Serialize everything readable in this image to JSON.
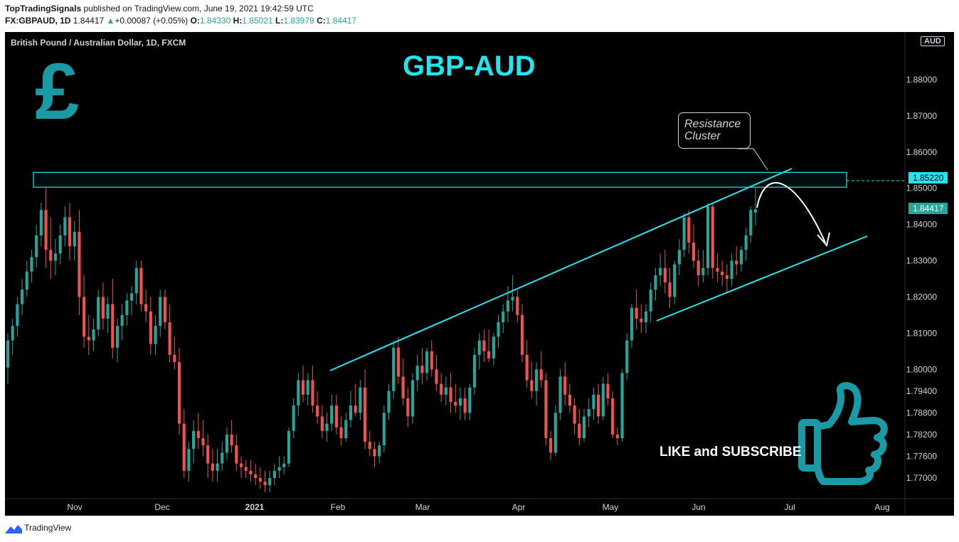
{
  "header": {
    "author": "TopTradingSignals",
    "published_text": "published on TradingView.com, June 19, 2021 19:42:59 UTC",
    "ticker": "FX:GBPAUD, 1D",
    "last": "1.84417",
    "change_icon": "triangle-up-icon",
    "change": "+0.00087 (+0.05%)",
    "o_label": "O:",
    "o_value": "1.84330",
    "h_label": "H:",
    "h_value": "1.85021",
    "l_label": "L:",
    "l_value": "1.83979",
    "c_label": "C:",
    "c_value": "1.84417"
  },
  "chart": {
    "symbol_desc": "British Pound / Australian Dollar, 1D, FXCM",
    "title": "GBP-AUD",
    "currency_symbol": "£",
    "currency_badge": "AUD",
    "callout_line1": "Resistance",
    "callout_line2": "Cluster",
    "like_text": "LIKE and SUBSCRIBE",
    "resistance_price": "1.85220",
    "last_price": "1.84417"
  },
  "colors": {
    "up": "#26a69a",
    "down": "#ef5350",
    "accent": "#22e5f0",
    "background": "#000000",
    "thumb": "#1a9aa5"
  },
  "footer": {
    "brand": "TradingView",
    "brand_icon": "tradingview-logo-icon"
  },
  "chart_data": {
    "type": "candlestick",
    "title": "GBP-AUD",
    "y_ticks": [
      "1.88000",
      "1.87000",
      "1.86000",
      "1.85000",
      "1.84000",
      "1.83000",
      "1.82000",
      "1.81000",
      "1.80000",
      "1.79400",
      "1.78800",
      "1.78200",
      "1.77600",
      "1.77000"
    ],
    "x_ticks": [
      "Nov",
      "Dec",
      "2021",
      "Feb",
      "Mar",
      "Apr",
      "May",
      "Jun",
      "Jul",
      "Aug"
    ],
    "resistance_zone": [
      1.8505,
      1.854
    ],
    "annotations": [
      "Resistance Cluster",
      "Rising channel",
      "Projected drop arrow"
    ],
    "candles": [
      [
        1.8005,
        1.81,
        1.796,
        1.808
      ],
      [
        1.808,
        1.814,
        1.804,
        1.812
      ],
      [
        1.812,
        1.82,
        1.809,
        1.818
      ],
      [
        1.818,
        1.825,
        1.815,
        1.822
      ],
      [
        1.822,
        1.83,
        1.82,
        1.827
      ],
      [
        1.827,
        1.833,
        1.824,
        1.831
      ],
      [
        1.831,
        1.84,
        1.828,
        1.837
      ],
      [
        1.837,
        1.846,
        1.834,
        1.844
      ],
      [
        1.844,
        1.85,
        1.828,
        1.833
      ],
      [
        1.833,
        1.842,
        1.825,
        1.83
      ],
      [
        1.83,
        1.836,
        1.826,
        1.832
      ],
      [
        1.832,
        1.84,
        1.829,
        1.837
      ],
      [
        1.837,
        1.845,
        1.834,
        1.842
      ],
      [
        1.842,
        1.846,
        1.83,
        1.834
      ],
      [
        1.834,
        1.841,
        1.83,
        1.838
      ],
      [
        1.838,
        1.844,
        1.815,
        1.82
      ],
      [
        1.82,
        1.826,
        1.806,
        1.809
      ],
      [
        1.809,
        1.815,
        1.804,
        1.808
      ],
      [
        1.808,
        1.814,
        1.805,
        1.811
      ],
      [
        1.811,
        1.822,
        1.809,
        1.82
      ],
      [
        1.82,
        1.824,
        1.811,
        1.814
      ],
      [
        1.814,
        1.82,
        1.81,
        1.818
      ],
      [
        1.818,
        1.825,
        1.803,
        1.806
      ],
      [
        1.806,
        1.814,
        1.802,
        1.812
      ],
      [
        1.812,
        1.818,
        1.808,
        1.815
      ],
      [
        1.815,
        1.821,
        1.812,
        1.819
      ],
      [
        1.819,
        1.823,
        1.815,
        1.821
      ],
      [
        1.821,
        1.83,
        1.818,
        1.828
      ],
      [
        1.828,
        1.83,
        1.816,
        1.818
      ],
      [
        1.818,
        1.822,
        1.813,
        1.816
      ],
      [
        1.816,
        1.82,
        1.804,
        1.807
      ],
      [
        1.807,
        1.815,
        1.804,
        1.812
      ],
      [
        1.812,
        1.822,
        1.809,
        1.82
      ],
      [
        1.82,
        1.822,
        1.811,
        1.813
      ],
      [
        1.813,
        1.818,
        1.802,
        1.804
      ],
      [
        1.804,
        1.809,
        1.8,
        1.802
      ],
      [
        1.802,
        1.806,
        1.782,
        1.785
      ],
      [
        1.785,
        1.789,
        1.77,
        1.772
      ],
      [
        1.772,
        1.78,
        1.769,
        1.778
      ],
      [
        1.778,
        1.786,
        1.774,
        1.783
      ],
      [
        1.783,
        1.788,
        1.778,
        1.781
      ],
      [
        1.781,
        1.786,
        1.776,
        1.779
      ],
      [
        1.779,
        1.782,
        1.77,
        1.774
      ],
      [
        1.774,
        1.778,
        1.769,
        1.772
      ],
      [
        1.772,
        1.778,
        1.769,
        1.774
      ],
      [
        1.774,
        1.78,
        1.772,
        1.777
      ],
      [
        1.777,
        1.784,
        1.775,
        1.782
      ],
      [
        1.782,
        1.786,
        1.777,
        1.779
      ],
      [
        1.779,
        1.782,
        1.772,
        1.774
      ],
      [
        1.774,
        1.776,
        1.77,
        1.773
      ],
      [
        1.773,
        1.775,
        1.77,
        1.772
      ],
      [
        1.772,
        1.775,
        1.769,
        1.771
      ],
      [
        1.771,
        1.774,
        1.768,
        1.77
      ],
      [
        1.77,
        1.773,
        1.767,
        1.769
      ],
      [
        1.769,
        1.772,
        1.766,
        1.768
      ],
      [
        1.768,
        1.772,
        1.766,
        1.77
      ],
      [
        1.77,
        1.774,
        1.768,
        1.772
      ],
      [
        1.772,
        1.776,
        1.77,
        1.773
      ],
      [
        1.773,
        1.776,
        1.771,
        1.774
      ],
      [
        1.774,
        1.784,
        1.773,
        1.783
      ],
      [
        1.783,
        1.792,
        1.781,
        1.79
      ],
      [
        1.79,
        1.799,
        1.787,
        1.797
      ],
      [
        1.797,
        1.801,
        1.791,
        1.793
      ],
      [
        1.793,
        1.799,
        1.79,
        1.797
      ],
      [
        1.797,
        1.801,
        1.788,
        1.79
      ],
      [
        1.79,
        1.794,
        1.785,
        1.787
      ],
      [
        1.787,
        1.79,
        1.781,
        1.783
      ],
      [
        1.783,
        1.788,
        1.78,
        1.785
      ],
      [
        1.785,
        1.793,
        1.783,
        1.79
      ],
      [
        1.79,
        1.793,
        1.782,
        1.784
      ],
      [
        1.784,
        1.787,
        1.779,
        1.781
      ],
      [
        1.781,
        1.788,
        1.78,
        1.786
      ],
      [
        1.786,
        1.794,
        1.784,
        1.79
      ],
      [
        1.79,
        1.796,
        1.787,
        1.788
      ],
      [
        1.788,
        1.797,
        1.786,
        1.795
      ],
      [
        1.795,
        1.8,
        1.778,
        1.78
      ],
      [
        1.78,
        1.783,
        1.776,
        1.778
      ],
      [
        1.778,
        1.78,
        1.773,
        1.776
      ],
      [
        1.776,
        1.78,
        1.774,
        1.779
      ],
      [
        1.779,
        1.79,
        1.777,
        1.788
      ],
      [
        1.788,
        1.796,
        1.786,
        1.794
      ],
      [
        1.794,
        1.808,
        1.792,
        1.806
      ],
      [
        1.806,
        1.809,
        1.796,
        1.798
      ],
      [
        1.798,
        1.803,
        1.79,
        1.792
      ],
      [
        1.792,
        1.795,
        1.784,
        1.787
      ],
      [
        1.787,
        1.799,
        1.785,
        1.797
      ],
      [
        1.797,
        1.804,
        1.794,
        1.801
      ],
      [
        1.801,
        1.806,
        1.796,
        1.799
      ],
      [
        1.799,
        1.806,
        1.797,
        1.805
      ],
      [
        1.805,
        1.808,
        1.798,
        1.8
      ],
      [
        1.8,
        1.804,
        1.794,
        1.796
      ],
      [
        1.796,
        1.799,
        1.791,
        1.793
      ],
      [
        1.793,
        1.798,
        1.79,
        1.795
      ],
      [
        1.795,
        1.799,
        1.788,
        1.791
      ],
      [
        1.791,
        1.796,
        1.788,
        1.79
      ],
      [
        1.79,
        1.795,
        1.786,
        1.792
      ],
      [
        1.792,
        1.795,
        1.786,
        1.788
      ],
      [
        1.788,
        1.796,
        1.786,
        1.795
      ],
      [
        1.795,
        1.806,
        1.793,
        1.804
      ],
      [
        1.804,
        1.81,
        1.8,
        1.808
      ],
      [
        1.808,
        1.811,
        1.802,
        1.805
      ],
      [
        1.805,
        1.811,
        1.802,
        1.803
      ],
      [
        1.803,
        1.81,
        1.801,
        1.809
      ],
      [
        1.809,
        1.815,
        1.806,
        1.813
      ],
      [
        1.813,
        1.818,
        1.81,
        1.816
      ],
      [
        1.816,
        1.823,
        1.813,
        1.819
      ],
      [
        1.819,
        1.826,
        1.816,
        1.82
      ],
      [
        1.82,
        1.822,
        1.813,
        1.815
      ],
      [
        1.815,
        1.818,
        1.802,
        1.804
      ],
      [
        1.804,
        1.808,
        1.795,
        1.797
      ],
      [
        1.797,
        1.802,
        1.792,
        1.794
      ],
      [
        1.794,
        1.802,
        1.79,
        1.8
      ],
      [
        1.8,
        1.805,
        1.795,
        1.797
      ],
      [
        1.797,
        1.799,
        1.779,
        1.781
      ],
      [
        1.781,
        1.783,
        1.775,
        1.777
      ],
      [
        1.777,
        1.79,
        1.776,
        1.788
      ],
      [
        1.788,
        1.8,
        1.786,
        1.798
      ],
      [
        1.798,
        1.802,
        1.79,
        1.793
      ],
      [
        1.793,
        1.796,
        1.788,
        1.79
      ],
      [
        1.79,
        1.792,
        1.782,
        1.785
      ],
      [
        1.785,
        1.789,
        1.779,
        1.781
      ],
      [
        1.781,
        1.789,
        1.78,
        1.787
      ],
      [
        1.787,
        1.792,
        1.784,
        1.789
      ],
      [
        1.789,
        1.795,
        1.786,
        1.793
      ],
      [
        1.793,
        1.796,
        1.785,
        1.787
      ],
      [
        1.787,
        1.798,
        1.786,
        1.796
      ],
      [
        1.796,
        1.799,
        1.79,
        1.792
      ],
      [
        1.792,
        1.794,
        1.781,
        1.782
      ],
      [
        1.782,
        1.784,
        1.779,
        1.781
      ],
      [
        1.781,
        1.8,
        1.78,
        1.799
      ],
      [
        1.799,
        1.81,
        1.797,
        1.808
      ],
      [
        1.808,
        1.818,
        1.806,
        1.817
      ],
      [
        1.817,
        1.822,
        1.811,
        1.814
      ],
      [
        1.814,
        1.818,
        1.81,
        1.813
      ],
      [
        1.813,
        1.818,
        1.81,
        1.816
      ],
      [
        1.816,
        1.824,
        1.813,
        1.822
      ],
      [
        1.822,
        1.828,
        1.819,
        1.826
      ],
      [
        1.826,
        1.832,
        1.823,
        1.828
      ],
      [
        1.828,
        1.833,
        1.821,
        1.824
      ],
      [
        1.824,
        1.828,
        1.817,
        1.82
      ],
      [
        1.82,
        1.83,
        1.818,
        1.829
      ],
      [
        1.829,
        1.836,
        1.826,
        1.833
      ],
      [
        1.833,
        1.843,
        1.831,
        1.842
      ],
      [
        1.842,
        1.844,
        1.832,
        1.835
      ],
      [
        1.835,
        1.84,
        1.828,
        1.83
      ],
      [
        1.83,
        1.833,
        1.823,
        1.826
      ],
      [
        1.826,
        1.833,
        1.824,
        1.828
      ],
      [
        1.828,
        1.846,
        1.826,
        1.845
      ],
      [
        1.845,
        1.846,
        1.825,
        1.828
      ],
      [
        1.828,
        1.832,
        1.824,
        1.827
      ],
      [
        1.827,
        1.83,
        1.823,
        1.826
      ],
      [
        1.826,
        1.829,
        1.821,
        1.825
      ],
      [
        1.825,
        1.832,
        1.823,
        1.83
      ],
      [
        1.83,
        1.834,
        1.826,
        1.829
      ],
      [
        1.829,
        1.834,
        1.827,
        1.833
      ],
      [
        1.833,
        1.839,
        1.83,
        1.837
      ],
      [
        1.837,
        1.845,
        1.835,
        1.844
      ],
      [
        1.8433,
        1.8502,
        1.8398,
        1.8442
      ]
    ]
  }
}
